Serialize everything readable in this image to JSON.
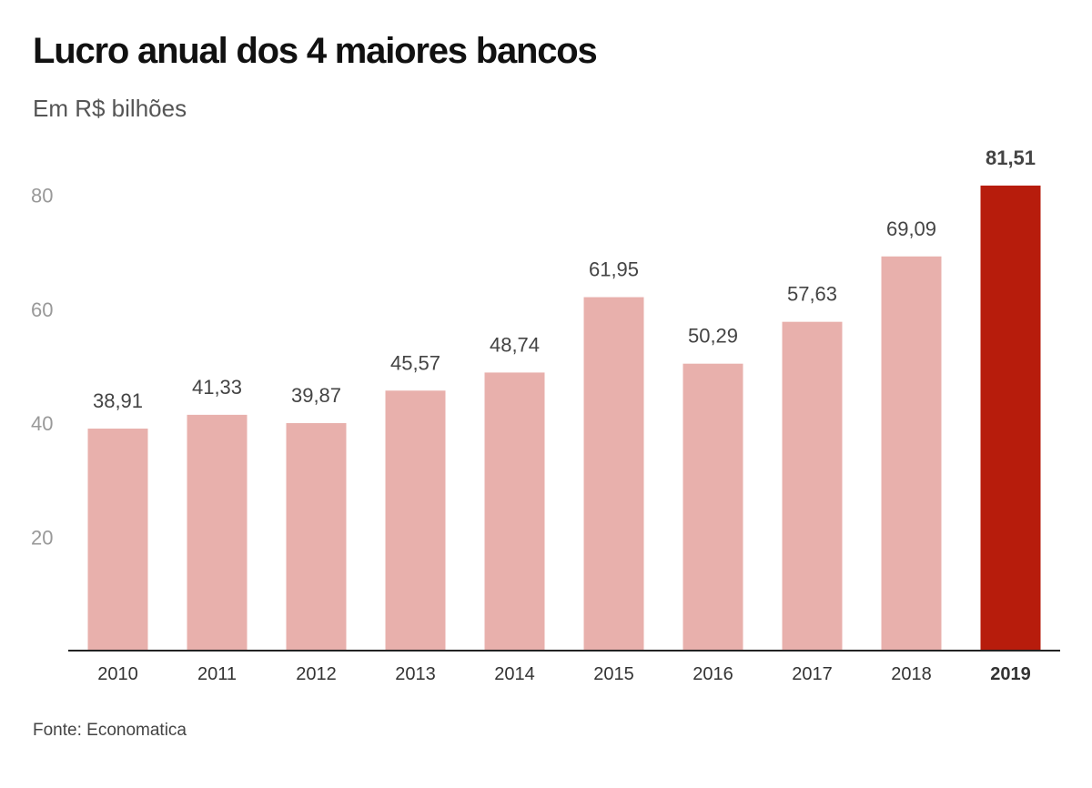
{
  "chart_data": {
    "type": "bar",
    "title": "Lucro anual dos 4 maiores bancos",
    "subtitle": "Em R$ bilhões",
    "categories": [
      "2010",
      "2011",
      "2012",
      "2013",
      "2014",
      "2015",
      "2016",
      "2017",
      "2018",
      "2019"
    ],
    "values": [
      38.91,
      41.33,
      39.87,
      45.57,
      48.74,
      61.95,
      50.29,
      57.63,
      69.09,
      81.51
    ],
    "value_labels": [
      "38,91",
      "41,33",
      "39,87",
      "45,57",
      "48,74",
      "61,95",
      "50,29",
      "57,63",
      "69,09",
      "81,51"
    ],
    "yticks": [
      20,
      40,
      60,
      80
    ],
    "ylim": [
      0,
      80
    ],
    "grid": false,
    "highlight_index": 9,
    "colors": {
      "bar": "#e8b0ac",
      "highlight": "#b71c0c",
      "axis": "#222222",
      "tick_text": "#999999",
      "label_text": "#444444"
    },
    "source": "Fonte: Economatica"
  }
}
